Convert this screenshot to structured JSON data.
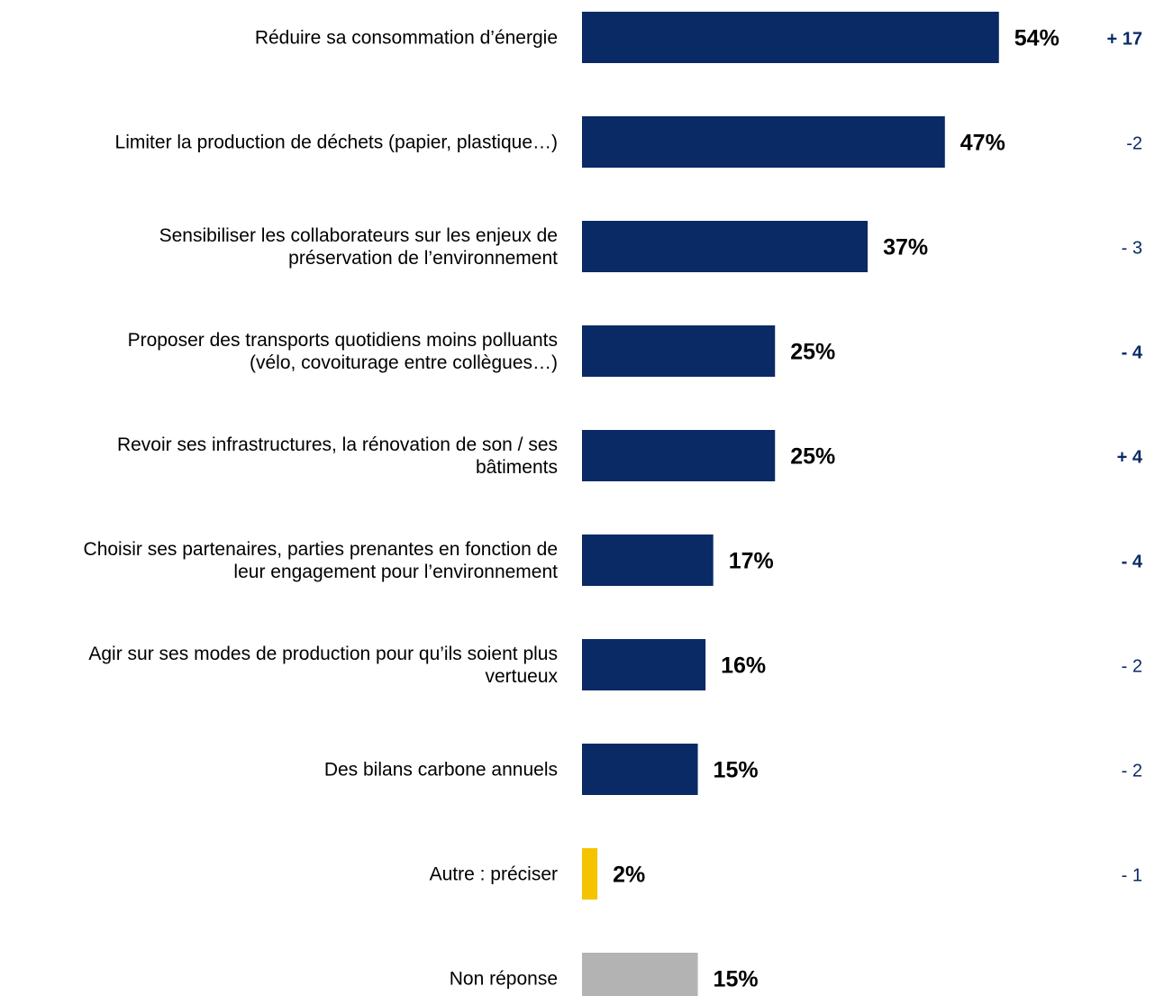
{
  "chart_data": {
    "type": "bar",
    "orientation": "horizontal",
    "categories": [
      [
        "Réduire sa consommation d’énergie"
      ],
      [
        "Limiter la production de déchets (papier, plastique…)"
      ],
      [
        "Sensibiliser les collaborateurs sur les enjeux de",
        "préservation de l’environnement"
      ],
      [
        "Proposer des transports quotidiens moins polluants",
        "(vélo, covoiturage entre collègues…)"
      ],
      [
        "Revoir ses infrastructures, la rénovation de son / ses",
        "bâtiments"
      ],
      [
        "Choisir ses partenaires, parties prenantes en fonction de",
        "leur engagement pour l’environnement"
      ],
      [
        "Agir sur ses modes de production pour qu’ils soient plus",
        "vertueux"
      ],
      [
        "Des bilans carbone annuels"
      ],
      [
        "Autre : préciser"
      ],
      [
        "Non réponse"
      ]
    ],
    "values": [
      54,
      47,
      37,
      25,
      25,
      17,
      16,
      15,
      2,
      15
    ],
    "value_labels": [
      "54%",
      "47%",
      "37%",
      "25%",
      "25%",
      "17%",
      "16%",
      "15%",
      "2%",
      "15%"
    ],
    "deltas": [
      "+ 17",
      "-2",
      "- 3",
      "- 4",
      "+ 4",
      "- 4",
      "- 2",
      "- 2",
      "- 1",
      ""
    ],
    "delta_bold": [
      true,
      false,
      false,
      true,
      true,
      true,
      false,
      false,
      false,
      false
    ],
    "bar_colors": [
      "#0a2a66",
      "#0a2a66",
      "#0a2a66",
      "#0a2a66",
      "#0a2a66",
      "#0a2a66",
      "#0a2a66",
      "#0a2a66",
      "#f5c400",
      "#b3b3b3"
    ],
    "delta_color": "#0a2a66",
    "unit": "%",
    "xlim": [
      0,
      54
    ],
    "title": "",
    "xlabel": "",
    "ylabel": "",
    "grid": false,
    "legend": "none"
  }
}
